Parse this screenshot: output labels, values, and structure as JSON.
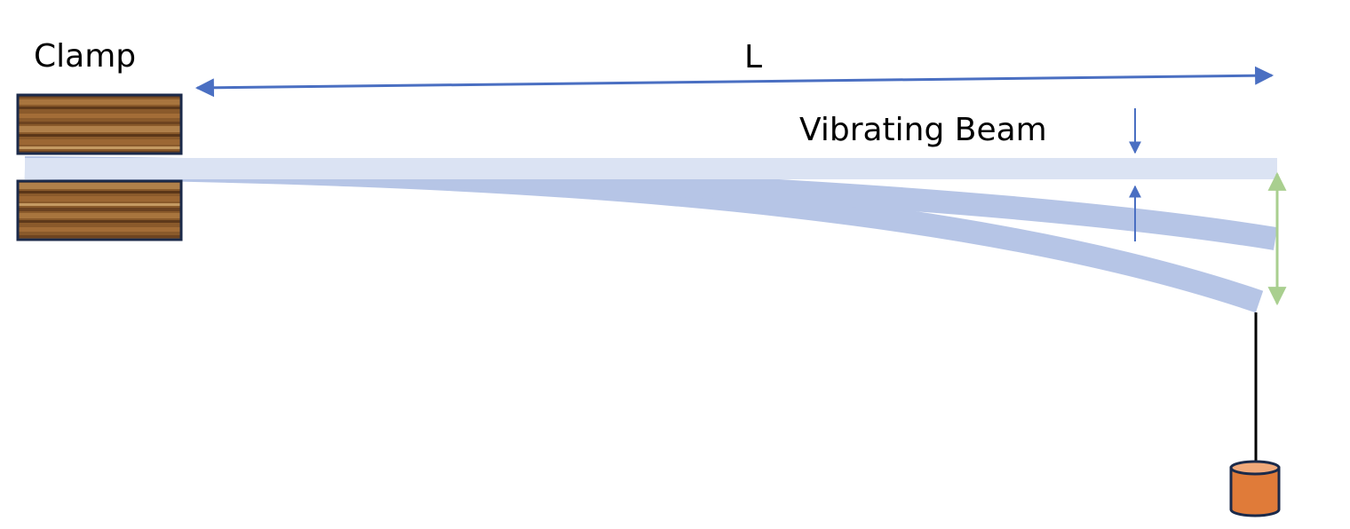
{
  "labels": {
    "clamp": "Clamp",
    "length": "L",
    "beam": "Vibrating Beam"
  },
  "colors": {
    "beam_rest": "#dbe3f3",
    "beam_deflected": "#b6c5e6",
    "length_arrow": "#4a6fc2",
    "deflection_arrow": "#4a6fc2",
    "amplitude_arrow": "#a9cf8f",
    "clamp_frame": "#1b2a4a",
    "clamp_wood": "#8a5a2b",
    "weight_body": "#e07b39",
    "weight_top": "#f0a97a",
    "string": "#000000"
  },
  "icons": {
    "clamp_top": "wood-block-icon",
    "clamp_bottom": "wood-block-icon",
    "weight": "cylinder-weight-icon"
  }
}
